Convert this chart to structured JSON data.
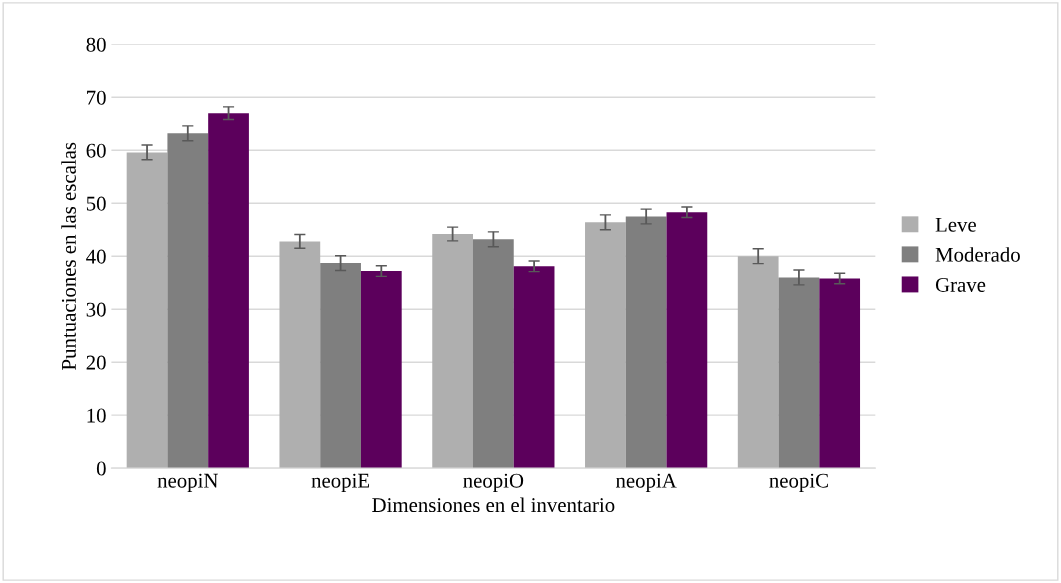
{
  "chart_data": {
    "type": "bar",
    "xlabel": "Dimensiones en el inventario",
    "ylabel": "Puntuaciones en las escalas",
    "categories": [
      "neopiN",
      "neopiE",
      "neopiO",
      "neopiA",
      "neopiC"
    ],
    "series": [
      {
        "name": "Leve",
        "color": "#afafaf",
        "values": [
          59.6,
          42.8,
          44.2,
          46.4,
          40.0
        ],
        "errors": [
          1.4,
          1.3,
          1.3,
          1.4,
          1.4
        ]
      },
      {
        "name": "Moderado",
        "color": "#7f7f7f",
        "values": [
          63.2,
          38.7,
          43.2,
          47.5,
          36.0
        ],
        "errors": [
          1.4,
          1.4,
          1.4,
          1.4,
          1.4
        ]
      },
      {
        "name": "Grave",
        "color": "#5c005c",
        "values": [
          67.0,
          37.2,
          38.1,
          48.3,
          35.8
        ],
        "errors": [
          1.2,
          1.0,
          1.0,
          1.0,
          1.0
        ]
      }
    ],
    "ylim": [
      0,
      80
    ],
    "yticks": [
      0,
      10,
      20,
      30,
      40,
      50,
      60,
      70,
      80
    ],
    "grid": "y",
    "legend": "right"
  }
}
